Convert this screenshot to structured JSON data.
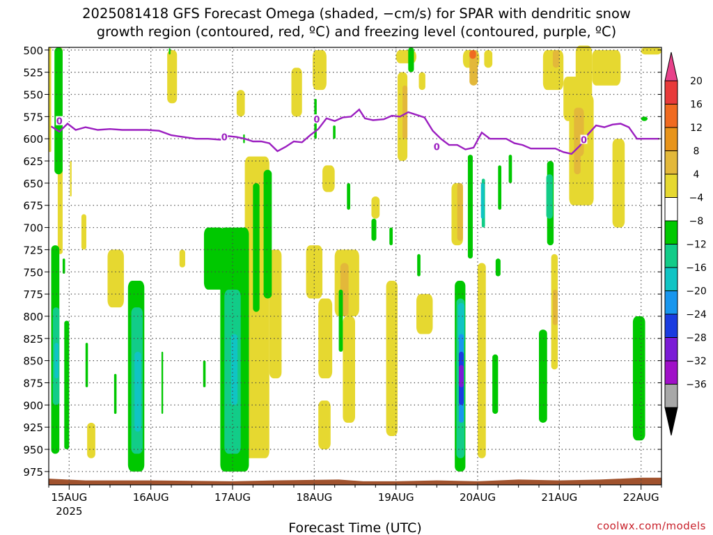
{
  "chart_data": {
    "type": "heatmap",
    "title_lines": [
      "2025081418 GFS Forecast Omega (shaded, −cm/s) for SPAR with dendritic snow",
      "growth region (contoured, red, ºC) and freezing level (contoured, purple, ºC)"
    ],
    "xlabel": "Forecast Time (UTC)",
    "ylabel": "",
    "credit": "coolwx.com/models",
    "y_axis": {
      "inverted": true,
      "ylim": [
        497,
        990
      ],
      "ticks": [
        500,
        525,
        550,
        575,
        600,
        625,
        650,
        675,
        700,
        725,
        750,
        775,
        800,
        825,
        850,
        875,
        900,
        925,
        950,
        975
      ]
    },
    "x_axis": {
      "start_day": "15AUG",
      "day_labels": [
        "15AUG",
        "16AUG",
        "17AUG",
        "18AUG",
        "19AUG",
        "20AUG",
        "21AUG",
        "22AUG"
      ],
      "year_label": "2025",
      "xlim_days": [
        -0.25,
        7.25
      ]
    },
    "grid": true,
    "colorbar": {
      "labels": [
        "20",
        "16",
        "12",
        "8",
        "4",
        "−4",
        "−8",
        "−12",
        "−16",
        "−20",
        "−24",
        "−28",
        "−32",
        "−36"
      ],
      "colors": [
        "#e8418a",
        "#e83a3a",
        "#f06a20",
        "#e8941a",
        "#e3b83a",
        "#e6d830",
        "#ffffff",
        "#00c800",
        "#12cc88",
        "#10c4c4",
        "#1896ee",
        "#1a3ce0",
        "#7b1bd6",
        "#a010c8",
        "#a8a8a8",
        "#000000"
      ]
    },
    "freezing_level": {
      "name": "0",
      "color": "#9b1ec0",
      "points": [
        [
          -0.22,
          586
        ],
        [
          -0.12,
          592
        ],
        [
          -0.02,
          583
        ],
        [
          0.08,
          590
        ],
        [
          0.2,
          587
        ],
        [
          0.35,
          590
        ],
        [
          0.5,
          589
        ],
        [
          0.65,
          590
        ],
        [
          0.8,
          590
        ],
        [
          0.95,
          590
        ],
        [
          1.1,
          591
        ],
        [
          1.25,
          596
        ],
        [
          1.4,
          598
        ],
        [
          1.55,
          600
        ],
        [
          1.7,
          600
        ],
        [
          1.85,
          601
        ],
        [
          1.95,
          597
        ],
        [
          2.05,
          598
        ],
        [
          2.15,
          600
        ],
        [
          2.25,
          603
        ],
        [
          2.35,
          603
        ],
        [
          2.45,
          605
        ],
        [
          2.55,
          614
        ],
        [
          2.65,
          609
        ],
        [
          2.75,
          603
        ],
        [
          2.85,
          604
        ],
        [
          2.95,
          596
        ],
        [
          3.05,
          589
        ],
        [
          3.15,
          577
        ],
        [
          3.25,
          580
        ],
        [
          3.35,
          576
        ],
        [
          3.45,
          575
        ],
        [
          3.55,
          567
        ],
        [
          3.62,
          577
        ],
        [
          3.72,
          579
        ],
        [
          3.85,
          578
        ],
        [
          3.95,
          574
        ],
        [
          4.05,
          575
        ],
        [
          4.15,
          570
        ],
        [
          4.25,
          573
        ],
        [
          4.35,
          576
        ],
        [
          4.45,
          591
        ],
        [
          4.55,
          600
        ],
        [
          4.65,
          607
        ],
        [
          4.75,
          607
        ],
        [
          4.85,
          612
        ],
        [
          4.95,
          610
        ],
        [
          5.05,
          593
        ],
        [
          5.15,
          600
        ],
        [
          5.25,
          600
        ],
        [
          5.35,
          600
        ],
        [
          5.45,
          605
        ],
        [
          5.55,
          607
        ],
        [
          5.65,
          611
        ],
        [
          5.75,
          611
        ],
        [
          5.85,
          611
        ],
        [
          5.95,
          611
        ],
        [
          6.05,
          615
        ],
        [
          6.15,
          617
        ],
        [
          6.25,
          608
        ],
        [
          6.35,
          595
        ],
        [
          6.45,
          585
        ],
        [
          6.55,
          587
        ],
        [
          6.65,
          584
        ],
        [
          6.75,
          583
        ],
        [
          6.85,
          587
        ],
        [
          6.95,
          600
        ],
        [
          7.05,
          600
        ],
        [
          7.15,
          600
        ],
        [
          7.22,
          600
        ]
      ],
      "labels": [
        [
          -0.12,
          580
        ],
        [
          1.9,
          598
        ],
        [
          3.03,
          578
        ],
        [
          4.5,
          609
        ],
        [
          6.3,
          601
        ]
      ]
    },
    "omega_regions": [
      {
        "value": 4,
        "d0": -0.25,
        "d1": -0.22,
        "p0": 497,
        "p1": 615
      },
      {
        "value": 4,
        "d0": -0.15,
        "d1": -0.08,
        "p0": 497,
        "p1": 520
      },
      {
        "value": 4,
        "d0": -0.14,
        "d1": -0.08,
        "p0": 620,
        "p1": 730
      },
      {
        "value": 4,
        "d0": 0.01,
        "d1": 0.03,
        "p0": 625,
        "p1": 665
      },
      {
        "value": 4,
        "d0": 0.15,
        "d1": 0.21,
        "p0": 685,
        "p1": 725
      },
      {
        "value": 4,
        "d0": 0.22,
        "d1": 0.32,
        "p0": 920,
        "p1": 960
      },
      {
        "value": 4,
        "d0": 0.47,
        "d1": 0.67,
        "p0": 725,
        "p1": 790
      },
      {
        "value": 4,
        "d0": 1.2,
        "d1": 1.32,
        "p0": 500,
        "p1": 560
      },
      {
        "value": 4,
        "d0": 1.35,
        "d1": 1.42,
        "p0": 725,
        "p1": 745
      },
      {
        "value": 4,
        "d0": 2.15,
        "d1": 2.45,
        "p0": 620,
        "p1": 960
      },
      {
        "value": 4,
        "d0": 2.05,
        "d1": 2.15,
        "p0": 545,
        "p1": 575
      },
      {
        "value": 4,
        "d0": 2.45,
        "d1": 2.6,
        "p0": 725,
        "p1": 870
      },
      {
        "value": 4,
        "d0": 2.72,
        "d1": 2.85,
        "p0": 520,
        "p1": 575
      },
      {
        "value": 4,
        "d0": 2.98,
        "d1": 3.15,
        "p0": 500,
        "p1": 545
      },
      {
        "value": 4,
        "d0": 3.1,
        "d1": 3.25,
        "p0": 630,
        "p1": 660
      },
      {
        "value": 4,
        "d0": 2.9,
        "d1": 3.1,
        "p0": 720,
        "p1": 780
      },
      {
        "value": 4,
        "d0": 3.05,
        "d1": 3.22,
        "p0": 780,
        "p1": 870
      },
      {
        "value": 4,
        "d0": 3.05,
        "d1": 3.2,
        "p0": 895,
        "p1": 950
      },
      {
        "value": 4,
        "d0": 3.25,
        "d1": 3.55,
        "p0": 725,
        "p1": 800
      },
      {
        "value": 4,
        "d0": 3.35,
        "d1": 3.5,
        "p0": 800,
        "p1": 920
      },
      {
        "value": 4,
        "d0": 3.7,
        "d1": 3.8,
        "p0": 665,
        "p1": 690
      },
      {
        "value": 4,
        "d0": 4.0,
        "d1": 4.25,
        "p0": 500,
        "p1": 515
      },
      {
        "value": 4,
        "d0": 3.88,
        "d1": 4.02,
        "p0": 760,
        "p1": 935
      },
      {
        "value": 4,
        "d0": 4.02,
        "d1": 4.14,
        "p0": 525,
        "p1": 625
      },
      {
        "value": 4,
        "d0": 4.28,
        "d1": 4.36,
        "p0": 525,
        "p1": 545
      },
      {
        "value": 4,
        "d0": 4.25,
        "d1": 4.45,
        "p0": 775,
        "p1": 820
      },
      {
        "value": 4,
        "d0": 4.68,
        "d1": 4.82,
        "p0": 650,
        "p1": 720
      },
      {
        "value": 4,
        "d0": 4.82,
        "d1": 5.02,
        "p0": 500,
        "p1": 520
      },
      {
        "value": 4,
        "d0": 5.0,
        "d1": 5.1,
        "p0": 740,
        "p1": 960
      },
      {
        "value": 4,
        "d0": 5.08,
        "d1": 5.18,
        "p0": 500,
        "p1": 520
      },
      {
        "value": 4,
        "d0": 5.8,
        "d1": 6.05,
        "p0": 500,
        "p1": 545
      },
      {
        "value": 4,
        "d0": 5.9,
        "d1": 5.98,
        "p0": 730,
        "p1": 860
      },
      {
        "value": 4,
        "d0": 6.05,
        "d1": 6.3,
        "p0": 530,
        "p1": 580
      },
      {
        "value": 4,
        "d0": 6.12,
        "d1": 6.42,
        "p0": 550,
        "p1": 675
      },
      {
        "value": 4,
        "d0": 6.2,
        "d1": 6.4,
        "p0": 495,
        "p1": 600
      },
      {
        "value": 4,
        "d0": 6.4,
        "d1": 6.75,
        "p0": 500,
        "p1": 540
      },
      {
        "value": 4,
        "d0": 6.65,
        "d1": 6.8,
        "p0": 600,
        "p1": 700
      },
      {
        "value": 4,
        "d0": 7.0,
        "d1": 7.25,
        "p0": 497,
        "p1": 505
      },
      {
        "value": 8,
        "d0": 3.32,
        "d1": 3.42,
        "p0": 740,
        "p1": 800
      },
      {
        "value": 8,
        "d0": 4.08,
        "d1": 4.14,
        "p0": 540,
        "p1": 600
      },
      {
        "value": 8,
        "d0": 4.75,
        "d1": 4.82,
        "p0": 650,
        "p1": 715
      },
      {
        "value": 8,
        "d0": 5.92,
        "d1": 5.98,
        "p0": 770,
        "p1": 810
      },
      {
        "value": 8,
        "d0": 6.18,
        "d1": 6.3,
        "p0": 565,
        "p1": 620
      },
      {
        "value": 8,
        "d0": 4.9,
        "d1": 5.0,
        "p0": 500,
        "p1": 540
      },
      {
        "value": 8,
        "d0": 5.92,
        "d1": 6.0,
        "p0": 500,
        "p1": 520
      },
      {
        "value": 8,
        "d0": 6.18,
        "d1": 6.26,
        "p0": 565,
        "p1": 640
      },
      {
        "value": 12,
        "d0": 4.9,
        "d1": 4.98,
        "p0": 500,
        "p1": 510
      },
      {
        "value": -8,
        "d0": -0.22,
        "d1": -0.12,
        "p0": 720,
        "p1": 955
      },
      {
        "value": -8,
        "d0": -0.18,
        "d1": -0.08,
        "p0": 497,
        "p1": 640
      },
      {
        "value": -8,
        "d0": -0.06,
        "d1": 0.0,
        "p0": 805,
        "p1": 950
      },
      {
        "value": -8,
        "d0": -0.08,
        "d1": -0.05,
        "p0": 735,
        "p1": 752
      },
      {
        "value": -8,
        "d0": 0.2,
        "d1": 0.23,
        "p0": 830,
        "p1": 880
      },
      {
        "value": -8,
        "d0": 0.55,
        "d1": 0.58,
        "p0": 865,
        "p1": 910
      },
      {
        "value": -8,
        "d0": 1.22,
        "d1": 1.24,
        "p0": 498,
        "p1": 505
      },
      {
        "value": -8,
        "d0": 0.72,
        "d1": 0.92,
        "p0": 760,
        "p1": 975
      },
      {
        "value": -8,
        "d0": 1.13,
        "d1": 1.15,
        "p0": 840,
        "p1": 910
      },
      {
        "value": -8,
        "d0": 1.64,
        "d1": 1.67,
        "p0": 850,
        "p1": 880
      },
      {
        "value": -8,
        "d0": 1.65,
        "d1": 1.9,
        "p0": 700,
        "p1": 770
      },
      {
        "value": -8,
        "d0": 1.85,
        "d1": 2.2,
        "p0": 700,
        "p1": 975
      },
      {
        "value": -8,
        "d0": 2.25,
        "d1": 2.33,
        "p0": 650,
        "p1": 795
      },
      {
        "value": -8,
        "d0": 2.38,
        "d1": 2.48,
        "p0": 635,
        "p1": 780
      },
      {
        "value": -8,
        "d0": 2.13,
        "d1": 2.15,
        "p0": 595,
        "p1": 605
      },
      {
        "value": -8,
        "d0": 3.0,
        "d1": 3.03,
        "p0": 555,
        "p1": 600
      },
      {
        "value": -8,
        "d0": 3.23,
        "d1": 3.26,
        "p0": 585,
        "p1": 600
      },
      {
        "value": -8,
        "d0": 3.3,
        "d1": 3.35,
        "p0": 770,
        "p1": 840
      },
      {
        "value": -8,
        "d0": 3.4,
        "d1": 3.44,
        "p0": 650,
        "p1": 680
      },
      {
        "value": -8,
        "d0": 3.92,
        "d1": 3.96,
        "p0": 700,
        "p1": 720
      },
      {
        "value": -8,
        "d0": 3.7,
        "d1": 3.76,
        "p0": 690,
        "p1": 715
      },
      {
        "value": -8,
        "d0": 4.15,
        "d1": 4.22,
        "p0": 497,
        "p1": 525
      },
      {
        "value": -8,
        "d0": 4.26,
        "d1": 4.3,
        "p0": 730,
        "p1": 755
      },
      {
        "value": -8,
        "d0": 4.72,
        "d1": 4.85,
        "p0": 760,
        "p1": 975
      },
      {
        "value": -8,
        "d0": 4.88,
        "d1": 4.94,
        "p0": 618,
        "p1": 735
      },
      {
        "value": -8,
        "d0": 5.18,
        "d1": 5.25,
        "p0": 843,
        "p1": 910
      },
      {
        "value": -8,
        "d0": 5.25,
        "d1": 5.29,
        "p0": 630,
        "p1": 680
      },
      {
        "value": -8,
        "d0": 5.38,
        "d1": 5.42,
        "p0": 618,
        "p1": 650
      },
      {
        "value": -8,
        "d0": 5.22,
        "d1": 5.28,
        "p0": 735,
        "p1": 755
      },
      {
        "value": -8,
        "d0": 5.85,
        "d1": 5.93,
        "p0": 625,
        "p1": 720
      },
      {
        "value": -8,
        "d0": 5.75,
        "d1": 5.85,
        "p0": 815,
        "p1": 920
      },
      {
        "value": -8,
        "d0": 7.0,
        "d1": 7.08,
        "p0": 575,
        "p1": 580
      },
      {
        "value": -8,
        "d0": 6.9,
        "d1": 7.05,
        "p0": 800,
        "p1": 940
      },
      {
        "value": -12,
        "d0": 4.74,
        "d1": 4.84,
        "p0": 780,
        "p1": 960
      },
      {
        "value": -12,
        "d0": 5.05,
        "d1": 5.09,
        "p0": 645,
        "p1": 700
      },
      {
        "value": -12,
        "d0": 5.84,
        "d1": 5.92,
        "p0": 640,
        "p1": 690
      },
      {
        "value": -12,
        "d0": 0.76,
        "d1": 0.9,
        "p0": 790,
        "p1": 955
      },
      {
        "value": -12,
        "d0": 1.9,
        "d1": 2.1,
        "p0": 770,
        "p1": 955
      },
      {
        "value": -12,
        "d0": -0.2,
        "d1": -0.12,
        "p0": 790,
        "p1": 900
      },
      {
        "value": -16,
        "d0": 0.8,
        "d1": 0.88,
        "p0": 840,
        "p1": 930
      },
      {
        "value": -16,
        "d0": 1.98,
        "d1": 2.06,
        "p0": 820,
        "p1": 900
      },
      {
        "value": -16,
        "d0": 4.76,
        "d1": 4.84,
        "p0": 785,
        "p1": 830
      },
      {
        "value": -16,
        "d0": -0.18,
        "d1": -0.13,
        "p0": 830,
        "p1": 870
      },
      {
        "value": -16,
        "d0": 5.04,
        "d1": 5.08,
        "p0": 650,
        "p1": 690
      },
      {
        "value": -20,
        "d0": 4.77,
        "d1": 4.83,
        "p0": 820,
        "p1": 920
      },
      {
        "value": -24,
        "d0": 4.77,
        "d1": 4.83,
        "p0": 840,
        "p1": 900
      },
      {
        "value": -28,
        "d0": 4.77,
        "d1": 4.83,
        "p0": 855,
        "p1": 880
      }
    ],
    "terrain": {
      "color": "#a0522d",
      "surface": [
        [
          -0.25,
          983
        ],
        [
          0.2,
          985
        ],
        [
          0.5,
          985
        ],
        [
          1.0,
          985
        ],
        [
          2.0,
          986
        ],
        [
          2.5,
          985
        ],
        [
          3.3,
          984
        ],
        [
          3.6,
          986
        ],
        [
          4.0,
          986
        ],
        [
          4.5,
          985
        ],
        [
          5.0,
          986
        ],
        [
          5.5,
          984
        ],
        [
          6.0,
          985
        ],
        [
          6.5,
          984
        ],
        [
          7.0,
          982
        ],
        [
          7.25,
          982
        ]
      ]
    }
  }
}
